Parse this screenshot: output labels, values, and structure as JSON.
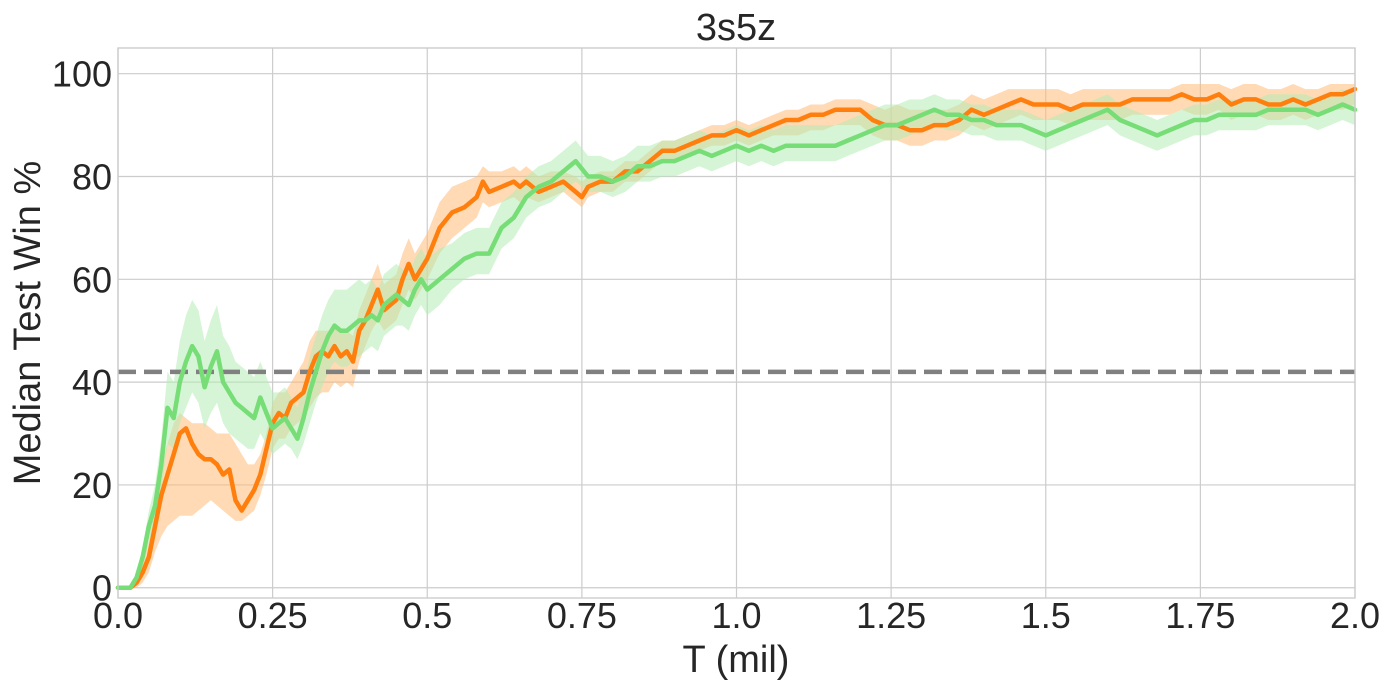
{
  "chart_data": {
    "type": "line",
    "title": "3s5z",
    "xlabel": "T (mil)",
    "ylabel": "Median Test Win %",
    "xlim": [
      0.0,
      2.0
    ],
    "ylim": [
      -2,
      105
    ],
    "xticks": [
      0.0,
      0.25,
      0.5,
      0.75,
      1.0,
      1.25,
      1.5,
      1.75,
      2.0
    ],
    "xtick_labels": [
      "0.0",
      "0.25",
      "0.5",
      "0.75",
      "1.0",
      "1.25",
      "1.5",
      "1.75",
      "2.0"
    ],
    "yticks": [
      0,
      20,
      40,
      60,
      80,
      100
    ],
    "ytick_labels": [
      "0",
      "20",
      "40",
      "60",
      "80",
      "100"
    ],
    "grid": true,
    "reference_line": {
      "y": 42,
      "color": "#808080",
      "style": "dashed"
    },
    "series": [
      {
        "color": "#ff7f0e",
        "band_color": "#ffbb78",
        "x": [
          0.0,
          0.02,
          0.03,
          0.04,
          0.05,
          0.06,
          0.07,
          0.08,
          0.09,
          0.1,
          0.11,
          0.12,
          0.13,
          0.14,
          0.15,
          0.16,
          0.17,
          0.18,
          0.19,
          0.2,
          0.21,
          0.22,
          0.23,
          0.24,
          0.25,
          0.26,
          0.27,
          0.28,
          0.29,
          0.3,
          0.31,
          0.32,
          0.33,
          0.34,
          0.35,
          0.36,
          0.37,
          0.38,
          0.39,
          0.4,
          0.41,
          0.42,
          0.43,
          0.44,
          0.45,
          0.46,
          0.47,
          0.48,
          0.49,
          0.5,
          0.52,
          0.54,
          0.56,
          0.58,
          0.59,
          0.6,
          0.62,
          0.64,
          0.65,
          0.66,
          0.68,
          0.7,
          0.72,
          0.74,
          0.75,
          0.76,
          0.78,
          0.8,
          0.82,
          0.84,
          0.86,
          0.88,
          0.9,
          0.92,
          0.94,
          0.96,
          0.98,
          1.0,
          1.02,
          1.04,
          1.06,
          1.08,
          1.1,
          1.12,
          1.14,
          1.16,
          1.18,
          1.2,
          1.22,
          1.24,
          1.26,
          1.28,
          1.3,
          1.32,
          1.34,
          1.36,
          1.38,
          1.4,
          1.42,
          1.44,
          1.46,
          1.48,
          1.5,
          1.52,
          1.54,
          1.56,
          1.58,
          1.6,
          1.62,
          1.64,
          1.66,
          1.68,
          1.7,
          1.72,
          1.74,
          1.76,
          1.78,
          1.8,
          1.82,
          1.84,
          1.86,
          1.88,
          1.9,
          1.92,
          1.94,
          1.96,
          1.98,
          2.0
        ],
        "y": [
          0,
          0,
          1,
          3,
          6,
          12,
          18,
          22,
          26,
          30,
          31,
          28,
          26,
          25,
          25,
          24,
          22,
          23,
          17,
          15,
          17,
          19,
          22,
          27,
          32,
          34,
          33,
          36,
          37,
          38,
          42,
          45,
          46,
          45,
          47,
          45,
          46,
          44,
          50,
          52,
          55,
          58,
          54,
          55,
          56,
          60,
          63,
          60,
          62,
          64,
          70,
          73,
          74,
          76,
          79,
          77,
          78,
          79,
          78,
          79,
          77,
          78,
          79,
          77,
          76,
          78,
          79,
          79,
          81,
          81,
          83,
          85,
          85,
          86,
          87,
          88,
          88,
          89,
          88,
          89,
          90,
          91,
          91,
          92,
          92,
          93,
          93,
          93,
          91,
          90,
          90,
          89,
          89,
          90,
          90,
          91,
          93,
          92,
          93,
          94,
          95,
          94,
          94,
          94,
          93,
          94,
          94,
          94,
          94,
          95,
          95,
          95,
          95,
          96,
          95,
          95,
          96,
          94,
          95,
          95,
          94,
          94,
          95,
          94,
          95,
          96,
          96,
          97
        ],
        "lower": [
          0,
          0,
          0,
          1,
          3,
          7,
          10,
          12,
          13,
          14,
          14,
          14,
          15,
          16,
          17,
          16,
          15,
          14,
          13,
          13,
          14,
          15,
          18,
          22,
          27,
          29,
          29,
          31,
          32,
          33,
          35,
          37,
          38,
          38,
          40,
          39,
          40,
          39,
          44,
          47,
          50,
          52,
          50,
          51,
          52,
          55,
          58,
          56,
          58,
          60,
          65,
          68,
          70,
          72,
          75,
          74,
          75,
          76,
          75,
          76,
          75,
          76,
          77,
          75,
          74,
          76,
          77,
          77,
          79,
          79,
          81,
          83,
          83,
          84,
          85,
          86,
          86,
          87,
          86,
          87,
          88,
          88,
          88,
          89,
          89,
          90,
          90,
          90,
          88,
          87,
          87,
          86,
          86,
          87,
          87,
          88,
          90,
          89,
          90,
          91,
          92,
          91,
          91,
          91,
          90,
          91,
          91,
          91,
          91,
          92,
          92,
          92,
          92,
          93,
          92,
          92,
          93,
          91,
          92,
          92,
          91,
          91,
          92,
          91,
          92,
          93,
          93,
          94
        ],
        "upper": [
          0,
          0,
          2,
          5,
          9,
          17,
          24,
          28,
          32,
          34,
          33,
          32,
          32,
          32,
          31,
          30,
          30,
          30,
          28,
          26,
          24,
          24,
          26,
          30,
          36,
          38,
          38,
          40,
          42,
          44,
          48,
          50,
          50,
          50,
          51,
          50,
          50,
          49,
          54,
          57,
          60,
          63,
          59,
          60,
          61,
          65,
          68,
          65,
          67,
          69,
          75,
          78,
          79,
          80,
          82,
          81,
          81,
          82,
          81,
          82,
          80,
          81,
          81,
          80,
          79,
          80,
          81,
          81,
          83,
          83,
          85,
          87,
          87,
          88,
          89,
          90,
          90,
          91,
          90,
          91,
          92,
          93,
          93,
          94,
          94,
          95,
          95,
          95,
          94,
          93,
          94,
          93,
          93,
          93,
          93,
          94,
          96,
          95,
          96,
          97,
          97,
          97,
          97,
          97,
          96,
          97,
          97,
          97,
          97,
          97,
          97,
          97,
          97,
          98,
          98,
          98,
          98,
          97,
          98,
          98,
          97,
          97,
          98,
          97,
          97,
          98,
          98,
          98
        ]
      },
      {
        "color": "#77dd77",
        "band_color": "#b5edb5",
        "x": [
          0.0,
          0.02,
          0.03,
          0.04,
          0.05,
          0.06,
          0.07,
          0.08,
          0.09,
          0.1,
          0.11,
          0.12,
          0.13,
          0.14,
          0.15,
          0.16,
          0.17,
          0.18,
          0.19,
          0.2,
          0.21,
          0.22,
          0.23,
          0.24,
          0.25,
          0.26,
          0.27,
          0.28,
          0.29,
          0.3,
          0.31,
          0.32,
          0.33,
          0.34,
          0.35,
          0.36,
          0.37,
          0.38,
          0.39,
          0.4,
          0.41,
          0.42,
          0.43,
          0.44,
          0.45,
          0.46,
          0.47,
          0.48,
          0.49,
          0.5,
          0.52,
          0.54,
          0.56,
          0.58,
          0.6,
          0.62,
          0.64,
          0.66,
          0.68,
          0.7,
          0.72,
          0.74,
          0.76,
          0.78,
          0.8,
          0.82,
          0.84,
          0.86,
          0.88,
          0.9,
          0.92,
          0.94,
          0.96,
          0.98,
          1.0,
          1.02,
          1.04,
          1.06,
          1.08,
          1.1,
          1.12,
          1.14,
          1.16,
          1.18,
          1.2,
          1.22,
          1.24,
          1.26,
          1.28,
          1.3,
          1.32,
          1.34,
          1.36,
          1.38,
          1.4,
          1.42,
          1.44,
          1.46,
          1.48,
          1.5,
          1.52,
          1.54,
          1.56,
          1.58,
          1.6,
          1.62,
          1.64,
          1.66,
          1.68,
          1.7,
          1.72,
          1.74,
          1.76,
          1.78,
          1.8,
          1.82,
          1.84,
          1.86,
          1.88,
          1.9,
          1.92,
          1.94,
          1.96,
          1.98,
          2.0
        ],
        "y": [
          0,
          0,
          2,
          6,
          12,
          16,
          24,
          35,
          33,
          40,
          44,
          47,
          45,
          39,
          43,
          46,
          40,
          38,
          36,
          35,
          34,
          33,
          37,
          34,
          31,
          32,
          33,
          31,
          29,
          33,
          38,
          42,
          46,
          49,
          51,
          50,
          50,
          51,
          52,
          52,
          53,
          52,
          55,
          56,
          57,
          56,
          55,
          58,
          60,
          58,
          60,
          62,
          64,
          65,
          65,
          70,
          72,
          76,
          78,
          79,
          81,
          83,
          80,
          80,
          79,
          80,
          82,
          82,
          83,
          83,
          84,
          85,
          84,
          85,
          86,
          85,
          86,
          85,
          86,
          86,
          86,
          86,
          86,
          87,
          88,
          89,
          90,
          90,
          91,
          92,
          93,
          92,
          92,
          91,
          91,
          90,
          90,
          90,
          89,
          88,
          89,
          90,
          91,
          92,
          93,
          91,
          90,
          89,
          88,
          89,
          90,
          91,
          91,
          92,
          92,
          92,
          92,
          93,
          93,
          93,
          93,
          92,
          93,
          94,
          93
        ],
        "lower": [
          0,
          0,
          1,
          4,
          9,
          12,
          19,
          28,
          27,
          32,
          35,
          38,
          36,
          31,
          34,
          36,
          32,
          30,
          29,
          28,
          27,
          27,
          30,
          28,
          26,
          27,
          28,
          27,
          25,
          28,
          32,
          36,
          39,
          42,
          44,
          43,
          43,
          44,
          45,
          46,
          47,
          46,
          49,
          50,
          51,
          51,
          50,
          53,
          55,
          53,
          55,
          58,
          60,
          61,
          61,
          66,
          68,
          72,
          74,
          75,
          77,
          79,
          77,
          77,
          76,
          77,
          79,
          79,
          80,
          80,
          81,
          82,
          81,
          82,
          83,
          82,
          83,
          82,
          83,
          83,
          83,
          83,
          83,
          84,
          85,
          86,
          87,
          87,
          88,
          89,
          90,
          89,
          89,
          88,
          88,
          87,
          87,
          87,
          86,
          85,
          86,
          87,
          88,
          89,
          90,
          88,
          87,
          86,
          85,
          86,
          87,
          88,
          88,
          89,
          89,
          89,
          89,
          90,
          90,
          90,
          90,
          89,
          90,
          91,
          90
        ],
        "upper": [
          0,
          0,
          3,
          8,
          15,
          20,
          29,
          42,
          40,
          48,
          53,
          56,
          54,
          48,
          52,
          55,
          49,
          47,
          44,
          43,
          42,
          41,
          44,
          41,
          38,
          38,
          39,
          37,
          35,
          39,
          45,
          49,
          53,
          56,
          58,
          58,
          58,
          59,
          60,
          59,
          60,
          58,
          61,
          62,
          63,
          62,
          61,
          64,
          66,
          64,
          66,
          67,
          69,
          70,
          70,
          75,
          77,
          80,
          82,
          83,
          85,
          87,
          84,
          84,
          83,
          84,
          86,
          86,
          87,
          87,
          88,
          89,
          88,
          89,
          90,
          89,
          90,
          89,
          90,
          90,
          90,
          90,
          90,
          91,
          92,
          93,
          94,
          94,
          95,
          95,
          96,
          95,
          95,
          94,
          94,
          93,
          93,
          93,
          92,
          91,
          92,
          93,
          94,
          95,
          96,
          94,
          93,
          92,
          91,
          92,
          93,
          94,
          94,
          95,
          95,
          95,
          95,
          96,
          96,
          96,
          96,
          95,
          96,
          97,
          96
        ]
      }
    ]
  }
}
